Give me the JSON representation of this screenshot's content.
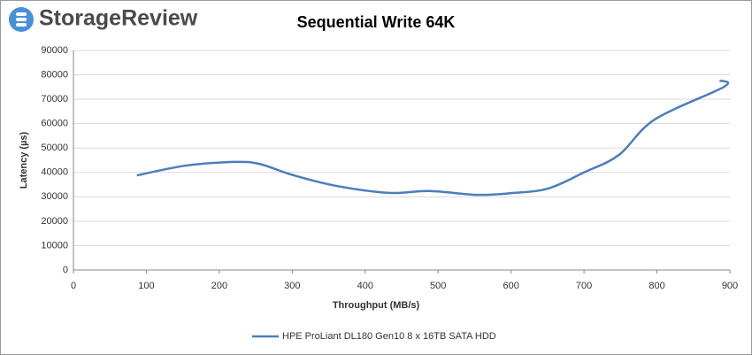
{
  "logo": "StorageReview",
  "chart_data": {
    "type": "line",
    "title": "Sequential Write 64K",
    "x_label": "Throughput (MB/s)",
    "y_label": "Latency (µs)",
    "xlim": [
      0,
      900
    ],
    "xticks": [
      0,
      100,
      200,
      300,
      400,
      500,
      600,
      700,
      800,
      900
    ],
    "ylim": [
      0,
      90000
    ],
    "yticks": [
      0,
      10000,
      20000,
      30000,
      40000,
      50000,
      60000,
      70000,
      80000,
      90000
    ],
    "grid": true,
    "legend": "bottom",
    "series": [
      {
        "name": "HPE ProLiant DL180 Gen10 8 x 16TB SATA HDD",
        "color": "#4a7ebb",
        "x": [
          87,
          154,
          221,
          255,
          300,
          360,
          433,
          488,
          554,
          603,
          651,
          700,
          748,
          797,
          892,
          886
        ],
        "values": [
          38800,
          42800,
          44300,
          43500,
          39000,
          34500,
          31600,
          32400,
          30800,
          31600,
          33400,
          40000,
          47200,
          61700,
          75100,
          77700
        ]
      }
    ]
  }
}
